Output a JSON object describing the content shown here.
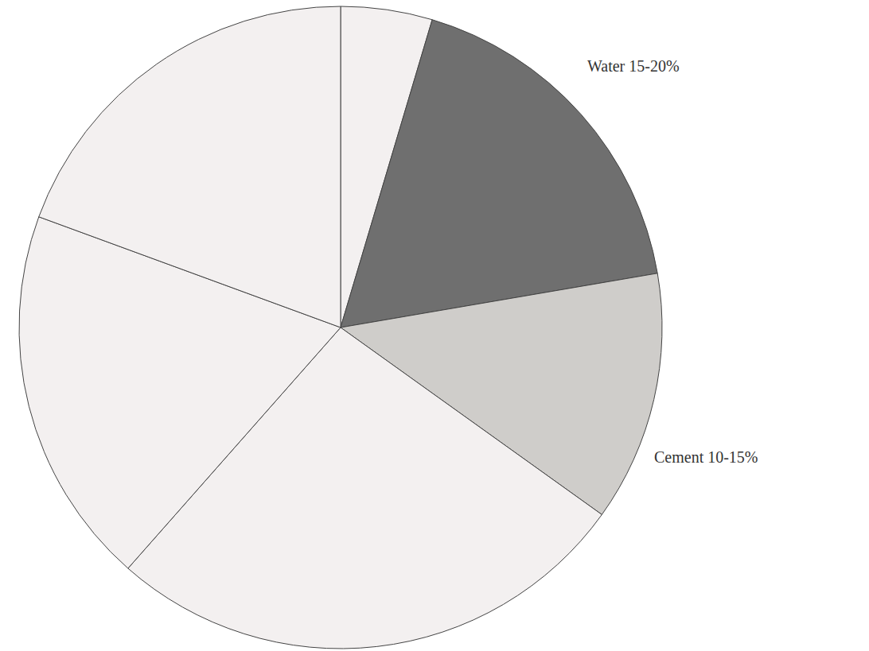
{
  "chart_data": {
    "type": "pie",
    "categories": [
      null,
      "Water 15-20%",
      "Cement 10-15%",
      null,
      null,
      null
    ],
    "values": [
      4.6,
      17.7,
      12.6,
      26.6,
      19.1,
      19.4
    ],
    "colors": [
      "#f3f0f0",
      "#6f6f6f",
      "#cfcdca",
      "#f3f0f0",
      "#f3f0f0",
      "#f3f0f0"
    ]
  }
}
